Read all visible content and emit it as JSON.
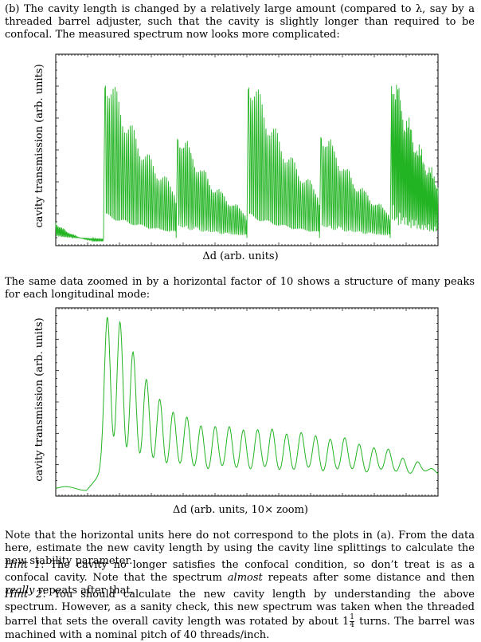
{
  "intro": {
    "text": "(b) The cavity length is changed by a relatively large amount (compared to λ, say by a threaded barrel adjuster, such that the cavity is slightly longer than required to be confocal. The measured spectrum now looks more complicated:"
  },
  "mid": {
    "text": "The same data zoomed in by a horizontal factor of 10 shows a structure of many peaks for each longitudinal mode:"
  },
  "note": {
    "text": "Note that the horizontal units here do not correspond to the plots in (a). From the data here, estimate the new cavity length by using the cavity line splittings to calculate the new stability parameter."
  },
  "hint1": {
    "label": "Hint 1",
    "text_a": ": The cavity no longer satisfies the confocal condition, so don’t treat is as a confocal cavity. Note that the spectrum ",
    "almost": "almost",
    "text_b": " repeats after some distance and then ",
    "really": "really",
    "text_c": " repeats after that."
  },
  "hint2": {
    "label": "Hint 2",
    "text_a": ": You should calculate the new cavity length by understanding the above spectrum. However, as a sanity check, this new spectrum was taken when the threaded barrel that sets the overall cavity length was rotated by about 1",
    "frac_num": "1",
    "frac_den": "4",
    "text_b": " turns. The barrel was machined with a nominal pitch of 40 threads/inch."
  },
  "colors": {
    "trace": "#22b422",
    "axis": "#000000"
  },
  "chart_data": [
    {
      "type": "line",
      "title": "",
      "xlabel": "Δd (arb. units)",
      "ylabel": "cavity transmission (arb. units)",
      "grid": false,
      "x_range": [
        0,
        1
      ],
      "y_range": [
        0,
        1
      ],
      "groups": [
        {
          "start": 0.0,
          "peak": 0.12,
          "decay": 0.06,
          "end": 0.12
        },
        {
          "start": 0.125,
          "peak": 0.92,
          "decay": 0.16,
          "end": 0.315
        },
        {
          "start": 0.315,
          "peak": 0.62,
          "decay": 0.14,
          "end": 0.5
        },
        {
          "start": 0.5,
          "peak": 0.91,
          "decay": 0.155,
          "end": 0.69
        },
        {
          "start": 0.69,
          "peak": 0.63,
          "decay": 0.14,
          "end": 0.875
        },
        {
          "start": 0.875,
          "peak": 0.93,
          "decay": 0.12,
          "end": 1.0
        }
      ],
      "peaks_per_group": 38
    },
    {
      "type": "line",
      "title": "",
      "xlabel": "Δd (arb. units, 10× zoom)",
      "ylabel": "cavity transmission (arb. units)",
      "grid": false,
      "x_range": [
        0,
        1
      ],
      "y_range": [
        0,
        1
      ],
      "baseline": 0.04,
      "rise_start": 0.08,
      "peaks": [
        {
          "x": 0.135,
          "y": 0.92
        },
        {
          "x": 0.168,
          "y": 0.91
        },
        {
          "x": 0.202,
          "y": 0.75
        },
        {
          "x": 0.237,
          "y": 0.59
        },
        {
          "x": 0.272,
          "y": 0.5
        },
        {
          "x": 0.307,
          "y": 0.43
        },
        {
          "x": 0.343,
          "y": 0.39
        },
        {
          "x": 0.38,
          "y": 0.36
        },
        {
          "x": 0.417,
          "y": 0.35
        },
        {
          "x": 0.454,
          "y": 0.34
        },
        {
          "x": 0.491,
          "y": 0.34
        },
        {
          "x": 0.528,
          "y": 0.33
        },
        {
          "x": 0.566,
          "y": 0.33
        },
        {
          "x": 0.604,
          "y": 0.32
        },
        {
          "x": 0.642,
          "y": 0.31
        },
        {
          "x": 0.68,
          "y": 0.3
        },
        {
          "x": 0.718,
          "y": 0.29
        },
        {
          "x": 0.756,
          "y": 0.28
        },
        {
          "x": 0.794,
          "y": 0.26
        },
        {
          "x": 0.832,
          "y": 0.24
        },
        {
          "x": 0.87,
          "y": 0.22
        },
        {
          "x": 0.908,
          "y": 0.19
        },
        {
          "x": 0.946,
          "y": 0.16
        },
        {
          "x": 0.984,
          "y": 0.12
        }
      ]
    }
  ]
}
